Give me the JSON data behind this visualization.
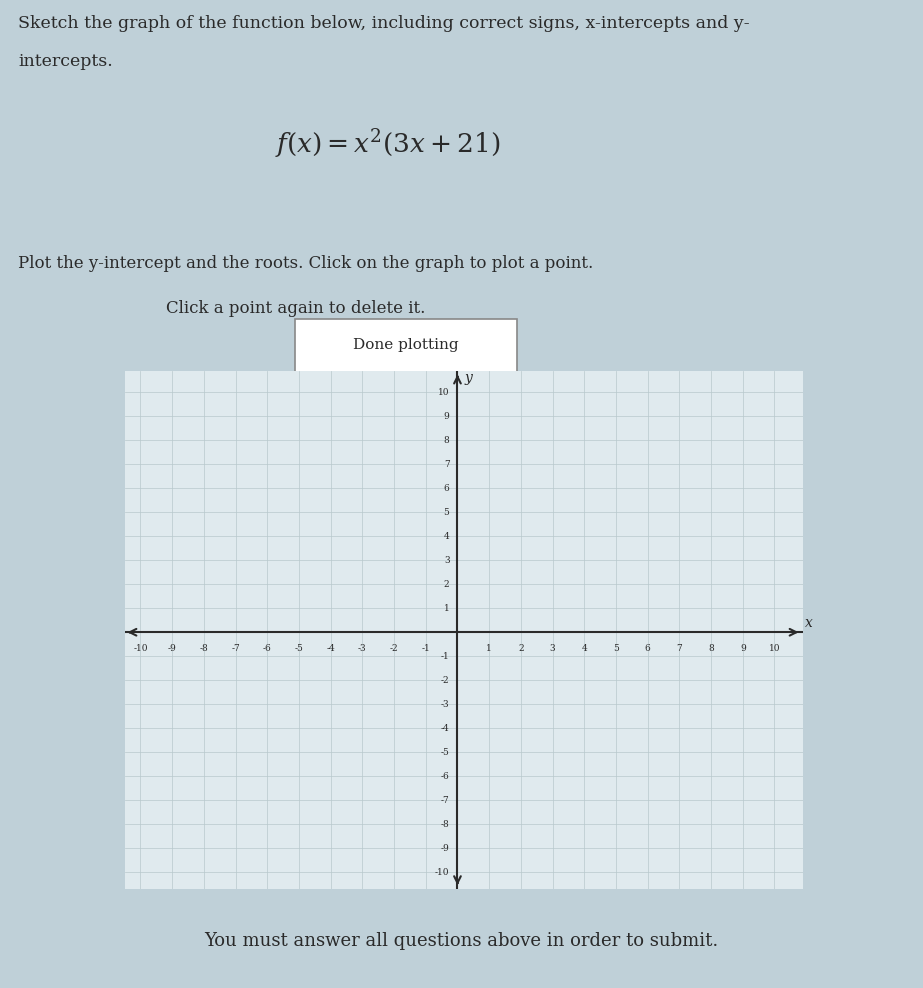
{
  "title_text_line1": "Sketch the graph of the function below, including correct signs, x-intercepts and y-",
  "title_text_line2": "intercepts.",
  "formula_latex": "$f(x) = x^2(3x + 21)$",
  "instruction_line1": "Plot the y-intercept and the roots. Click on the graph to plot a point.",
  "instruction_line2": "Click a point again to delete it.",
  "button_text": "Done plotting",
  "submit_text": "You must answer all questions above in order to submit.",
  "x_min": -10,
  "x_max": 10,
  "y_min": -10,
  "y_max": 10,
  "grid_color": "#b8c8cc",
  "axis_color": "#2a2a2a",
  "bg_outer": "#bfd0d8",
  "bg_grid": "#e0eaee",
  "text_color": "#2a2a2a",
  "submit_bg": "#f5f5f5",
  "submit_border": "#bbbbbb",
  "button_bg": "#ffffff",
  "button_border": "#888888"
}
